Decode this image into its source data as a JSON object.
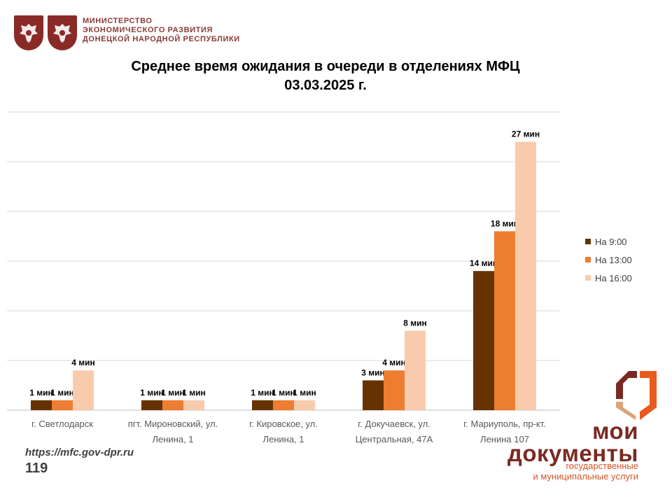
{
  "header": {
    "ministry_lines": [
      "МИНИСТЕРСТВО",
      "ЭКОНОМИЧЕСКОГО РАЗВИТИЯ",
      "ДОНЕЦКОЙ НАРОДНОЙ РЕСПУБЛИКИ"
    ]
  },
  "title_lines": [
    "Среднее время ожидания в очереди в отделениях МФЦ",
    "03.03.2025 г."
  ],
  "footer": {
    "url": "https://mfc.gov-dpr.ru",
    "page_number": "119"
  },
  "brand": {
    "main_lines": [
      "мои",
      "документы"
    ],
    "sub_lines": [
      "государственные",
      "и муниципальные услуги"
    ]
  },
  "colors": {
    "accent": "#7a2a22",
    "brand_orange": "#d2552a"
  },
  "icons": [
    "coat-of-arms-icon",
    "mfc-logo-icon"
  ],
  "chart_data": {
    "type": "bar",
    "title": "Среднее время ожидания в очереди в отделениях МФЦ 03.03.2025 г.",
    "categories": [
      [
        "г. Светлодарск"
      ],
      [
        "пгт. Мироновский, ул.",
        "Ленина, 1"
      ],
      [
        "г. Кировское, ул.",
        "Ленина, 1"
      ],
      [
        "г. Докучаевск, ул.",
        "Центральная, 47А"
      ],
      [
        "г. Мариуполь, пр-кт.",
        "Ленина 107"
      ]
    ],
    "series": [
      {
        "name": "На 9:00",
        "color": "#663300",
        "values": [
          1,
          1,
          1,
          3,
          14
        ],
        "labels": [
          "1 мин",
          "1 мин",
          "1 мин",
          "3 мин",
          "14 мин"
        ]
      },
      {
        "name": "На 13:00",
        "color": "#ed7d31",
        "values": [
          1,
          1,
          1,
          4,
          18
        ],
        "labels": [
          "1 мин",
          "1 мин",
          "1 мин",
          "4 мин",
          "18 мин"
        ]
      },
      {
        "name": "На 16:00",
        "color": "#f8cbad",
        "values": [
          4,
          1,
          1,
          8,
          27
        ],
        "labels": [
          "4 мин",
          "1 мин",
          "1 мин",
          "8 мин",
          "27 мин"
        ]
      }
    ],
    "ylim": [
      0,
      30
    ],
    "grid": true,
    "legend": "right"
  }
}
